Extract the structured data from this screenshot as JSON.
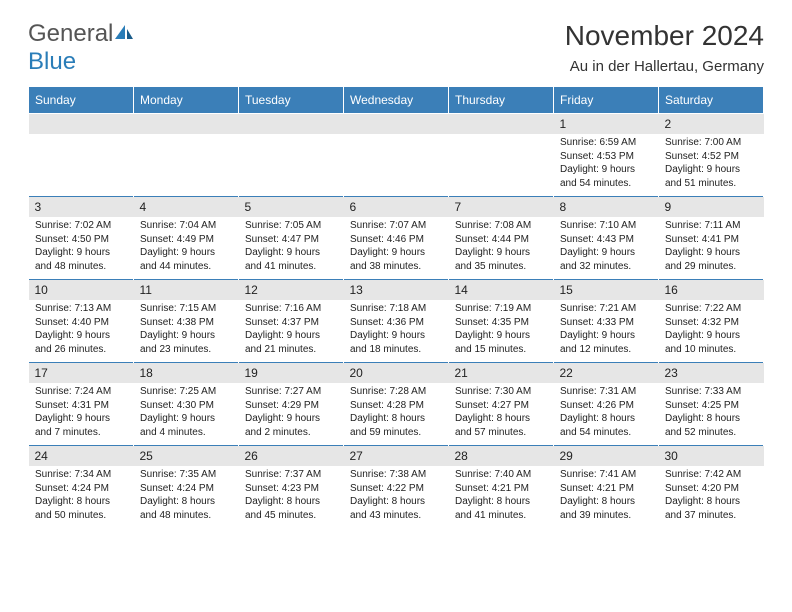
{
  "logo": {
    "text1": "General",
    "text2": "Blue"
  },
  "title": "November 2024",
  "location": "Au in der Hallertau, Germany",
  "colors": {
    "header_bg": "#3b7fb8",
    "header_text": "#ffffff",
    "daynum_bg": "#e6e6e6",
    "cell_border_top": "#3b7fb8",
    "background": "#ffffff",
    "text": "#222222",
    "logo_blue": "#2a7db8",
    "logo_gray": "#555555"
  },
  "layout": {
    "columns": 7,
    "rows": 5,
    "header_fontsize": 12,
    "body_fontsize": 10,
    "title_fontsize": 28,
    "location_fontsize": 15
  },
  "days": [
    "Sunday",
    "Monday",
    "Tuesday",
    "Wednesday",
    "Thursday",
    "Friday",
    "Saturday"
  ],
  "weeks": [
    [
      null,
      null,
      null,
      null,
      null,
      {
        "n": "1",
        "sunrise": "6:59 AM",
        "sunset": "4:53 PM",
        "daylight": "9 hours and 54 minutes."
      },
      {
        "n": "2",
        "sunrise": "7:00 AM",
        "sunset": "4:52 PM",
        "daylight": "9 hours and 51 minutes."
      }
    ],
    [
      {
        "n": "3",
        "sunrise": "7:02 AM",
        "sunset": "4:50 PM",
        "daylight": "9 hours and 48 minutes."
      },
      {
        "n": "4",
        "sunrise": "7:04 AM",
        "sunset": "4:49 PM",
        "daylight": "9 hours and 44 minutes."
      },
      {
        "n": "5",
        "sunrise": "7:05 AM",
        "sunset": "4:47 PM",
        "daylight": "9 hours and 41 minutes."
      },
      {
        "n": "6",
        "sunrise": "7:07 AM",
        "sunset": "4:46 PM",
        "daylight": "9 hours and 38 minutes."
      },
      {
        "n": "7",
        "sunrise": "7:08 AM",
        "sunset": "4:44 PM",
        "daylight": "9 hours and 35 minutes."
      },
      {
        "n": "8",
        "sunrise": "7:10 AM",
        "sunset": "4:43 PM",
        "daylight": "9 hours and 32 minutes."
      },
      {
        "n": "9",
        "sunrise": "7:11 AM",
        "sunset": "4:41 PM",
        "daylight": "9 hours and 29 minutes."
      }
    ],
    [
      {
        "n": "10",
        "sunrise": "7:13 AM",
        "sunset": "4:40 PM",
        "daylight": "9 hours and 26 minutes."
      },
      {
        "n": "11",
        "sunrise": "7:15 AM",
        "sunset": "4:38 PM",
        "daylight": "9 hours and 23 minutes."
      },
      {
        "n": "12",
        "sunrise": "7:16 AM",
        "sunset": "4:37 PM",
        "daylight": "9 hours and 21 minutes."
      },
      {
        "n": "13",
        "sunrise": "7:18 AM",
        "sunset": "4:36 PM",
        "daylight": "9 hours and 18 minutes."
      },
      {
        "n": "14",
        "sunrise": "7:19 AM",
        "sunset": "4:35 PM",
        "daylight": "9 hours and 15 minutes."
      },
      {
        "n": "15",
        "sunrise": "7:21 AM",
        "sunset": "4:33 PM",
        "daylight": "9 hours and 12 minutes."
      },
      {
        "n": "16",
        "sunrise": "7:22 AM",
        "sunset": "4:32 PM",
        "daylight": "9 hours and 10 minutes."
      }
    ],
    [
      {
        "n": "17",
        "sunrise": "7:24 AM",
        "sunset": "4:31 PM",
        "daylight": "9 hours and 7 minutes."
      },
      {
        "n": "18",
        "sunrise": "7:25 AM",
        "sunset": "4:30 PM",
        "daylight": "9 hours and 4 minutes."
      },
      {
        "n": "19",
        "sunrise": "7:27 AM",
        "sunset": "4:29 PM",
        "daylight": "9 hours and 2 minutes."
      },
      {
        "n": "20",
        "sunrise": "7:28 AM",
        "sunset": "4:28 PM",
        "daylight": "8 hours and 59 minutes."
      },
      {
        "n": "21",
        "sunrise": "7:30 AM",
        "sunset": "4:27 PM",
        "daylight": "8 hours and 57 minutes."
      },
      {
        "n": "22",
        "sunrise": "7:31 AM",
        "sunset": "4:26 PM",
        "daylight": "8 hours and 54 minutes."
      },
      {
        "n": "23",
        "sunrise": "7:33 AM",
        "sunset": "4:25 PM",
        "daylight": "8 hours and 52 minutes."
      }
    ],
    [
      {
        "n": "24",
        "sunrise": "7:34 AM",
        "sunset": "4:24 PM",
        "daylight": "8 hours and 50 minutes."
      },
      {
        "n": "25",
        "sunrise": "7:35 AM",
        "sunset": "4:24 PM",
        "daylight": "8 hours and 48 minutes."
      },
      {
        "n": "26",
        "sunrise": "7:37 AM",
        "sunset": "4:23 PM",
        "daylight": "8 hours and 45 minutes."
      },
      {
        "n": "27",
        "sunrise": "7:38 AM",
        "sunset": "4:22 PM",
        "daylight": "8 hours and 43 minutes."
      },
      {
        "n": "28",
        "sunrise": "7:40 AM",
        "sunset": "4:21 PM",
        "daylight": "8 hours and 41 minutes."
      },
      {
        "n": "29",
        "sunrise": "7:41 AM",
        "sunset": "4:21 PM",
        "daylight": "8 hours and 39 minutes."
      },
      {
        "n": "30",
        "sunrise": "7:42 AM",
        "sunset": "4:20 PM",
        "daylight": "8 hours and 37 minutes."
      }
    ]
  ],
  "labels": {
    "sunrise": "Sunrise:",
    "sunset": "Sunset:",
    "daylight": "Daylight:"
  }
}
